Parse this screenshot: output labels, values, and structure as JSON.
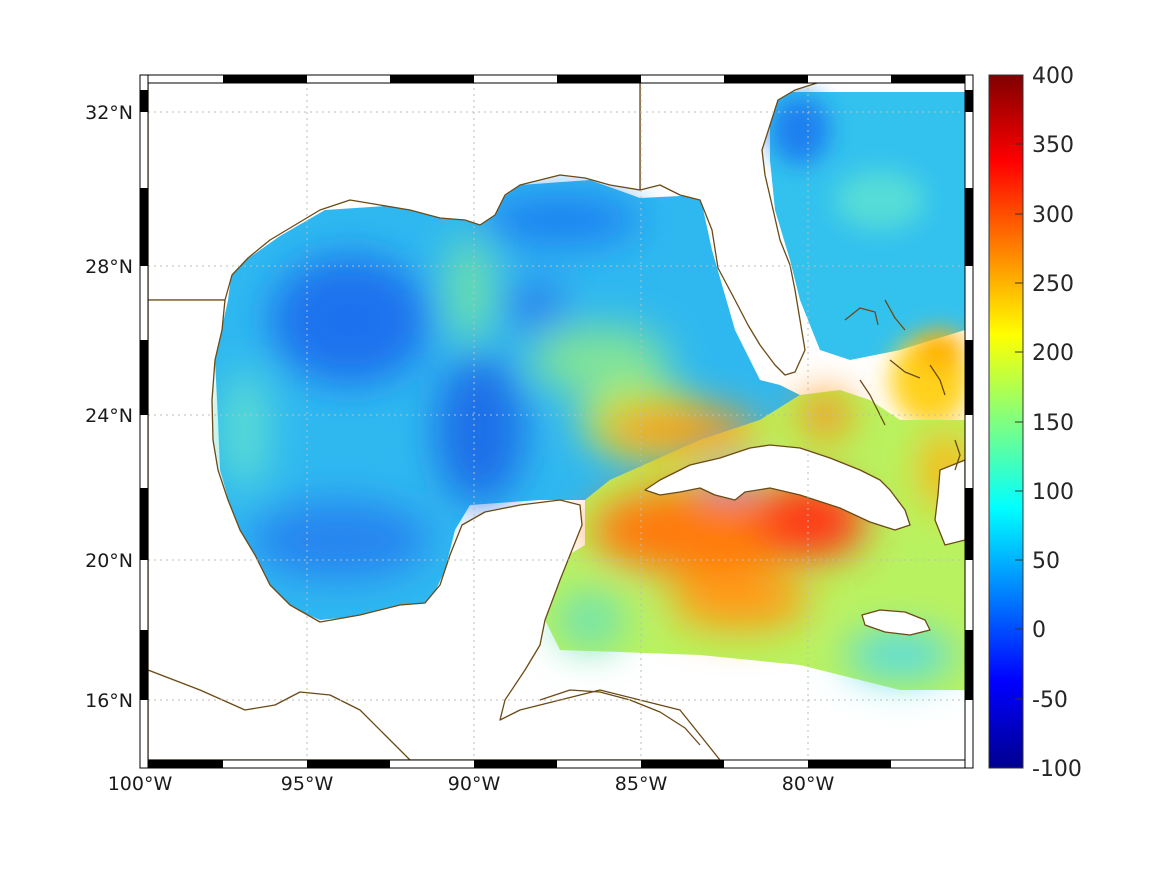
{
  "map": {
    "projection": "mercator",
    "lon_range": [
      -100,
      -75
    ],
    "lat_range": [
      14.2,
      33
    ],
    "lon_ticks": [
      {
        "value": -100,
        "label": "100°W"
      },
      {
        "value": -95,
        "label": "95°W"
      },
      {
        "value": -90,
        "label": "90°W"
      },
      {
        "value": -85,
        "label": "85°W"
      },
      {
        "value": -80,
        "label": "80°W"
      }
    ],
    "lat_ticks": [
      {
        "value": 16,
        "label": "16°N"
      },
      {
        "value": 20,
        "label": "20°N"
      },
      {
        "value": 24,
        "label": "24°N"
      },
      {
        "value": 28,
        "label": "28°N"
      },
      {
        "value": 32,
        "label": "32°N"
      }
    ],
    "grid": true,
    "colormap": "jet"
  },
  "colorbar": {
    "range": [
      -100,
      400
    ],
    "ticks": [
      {
        "value": 400,
        "label": "400"
      },
      {
        "value": 350,
        "label": "350"
      },
      {
        "value": 300,
        "label": "300"
      },
      {
        "value": 250,
        "label": "250"
      },
      {
        "value": 200,
        "label": "200"
      },
      {
        "value": 150,
        "label": "150"
      },
      {
        "value": 100,
        "label": "100"
      },
      {
        "value": 50,
        "label": "50"
      },
      {
        "value": 0,
        "label": "0"
      },
      {
        "value": -50,
        "label": "-50"
      },
      {
        "value": -100,
        "label": "-100"
      }
    ]
  },
  "colors": {
    "coastline": "#6b4a14",
    "land": "#ffffff",
    "gulf_low": "#1e90ff",
    "caribbean_high": "#ff5a00"
  }
}
